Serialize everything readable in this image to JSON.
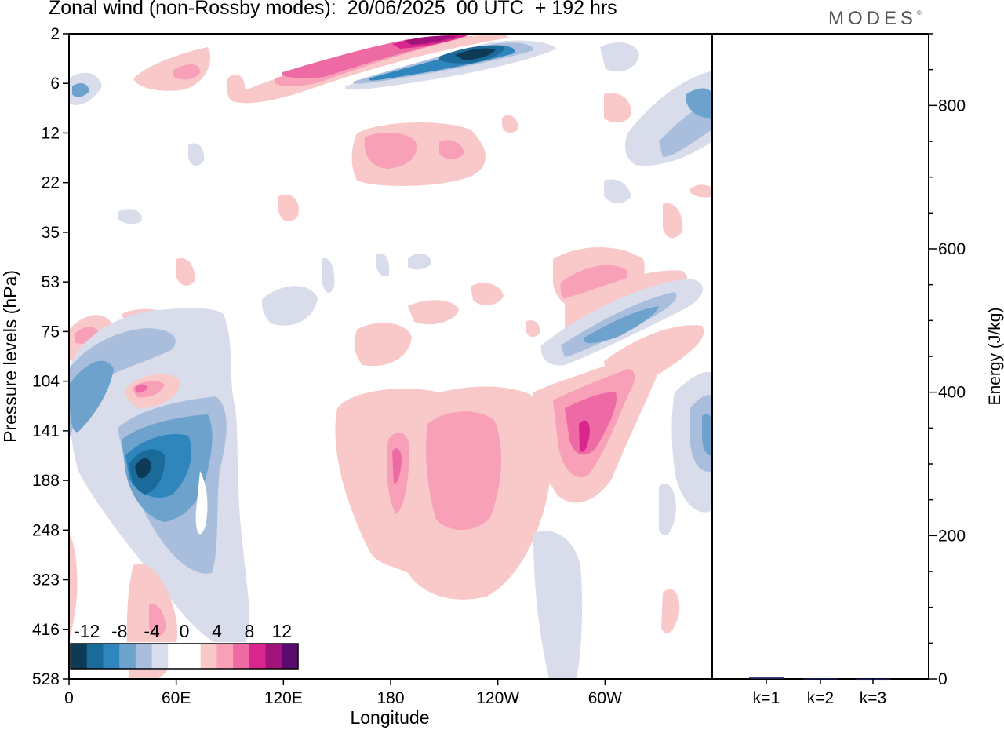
{
  "title": "Zonal wind (non-Rossby modes):  20/06/2025  00 UTC  + 192 hrs",
  "brand": "MODES",
  "brand_mark": "©",
  "chart_data": [
    {
      "type": "heatmap",
      "xlabel": "Longitude",
      "ylabel": "Pressure levels (hPa)",
      "x_ticks": [
        "0",
        "60E",
        "120E",
        "180",
        "120W",
        "60W"
      ],
      "y_ticks": [
        "2",
        "6",
        "12",
        "22",
        "35",
        "53",
        "75",
        "104",
        "141",
        "188",
        "248",
        "323",
        "416",
        "528"
      ],
      "colorbar": {
        "labels": [
          "-12",
          "-8",
          "-4",
          "0",
          "4",
          "8",
          "12"
        ],
        "levels": [
          -14,
          -12,
          -10,
          -8,
          -6,
          -4,
          -2,
          0,
          2,
          4,
          6,
          8,
          10,
          12,
          14
        ],
        "colors": [
          "#0d3b55",
          "#1a6a9a",
          "#2f86bd",
          "#6da2cc",
          "#a9bedc",
          "#d9dcea",
          "#ffffff",
          "#ffffff",
          "#f9c9c9",
          "#f7a0b7",
          "#ee6aa5",
          "#d9268e",
          "#a1137b",
          "#5b0a6e"
        ]
      },
      "features": [
        {
          "sign": "positive",
          "peak": 14,
          "lon": [
            170,
            200
          ],
          "level": "2-4"
        },
        {
          "sign": "negative",
          "peak": -14,
          "lon": [
            200,
            225
          ],
          "level": "2-6"
        },
        {
          "sign": "positive",
          "peak": 8,
          "lon": [
            155,
            200
          ],
          "level": "12-22"
        },
        {
          "sign": "negative",
          "peak": -14,
          "lon": [
            35,
            55
          ],
          "level": "141-188"
        },
        {
          "sign": "positive",
          "peak": 10,
          "lon": [
            280,
            290
          ],
          "level": "104-188"
        },
        {
          "sign": "positive",
          "peak": 8,
          "lon": [
            265,
            285
          ],
          "level": "35-75"
        },
        {
          "sign": "negative",
          "peak": -8,
          "lon": [
            270,
            300
          ],
          "level": "53-104"
        }
      ]
    },
    {
      "type": "bar",
      "categories": [
        "k=1",
        "k=2",
        "k=3"
      ],
      "values": [
        2,
        1,
        0.5
      ],
      "ylabel": "Energy (J/kg)",
      "y_ticks": [
        "0",
        "200",
        "400",
        "600",
        "800"
      ],
      "ylim": [
        0,
        900
      ]
    }
  ]
}
